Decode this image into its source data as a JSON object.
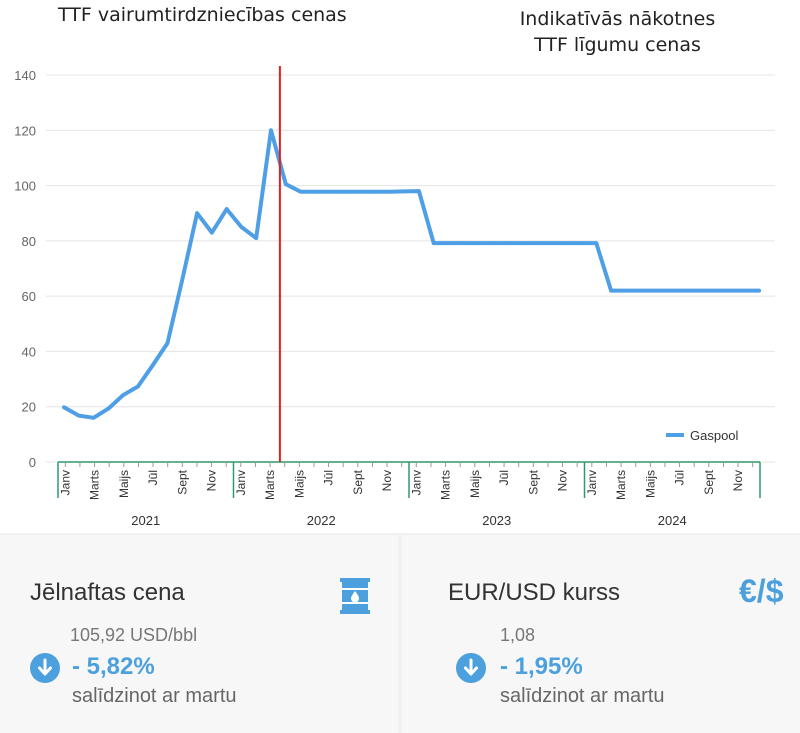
{
  "titles": {
    "left": "TTF vairumtirdzniecības cenas",
    "right_line1": "Indikatīvās nākotnes",
    "right_line2": "TTF līgumu cenas"
  },
  "chart_data": {
    "type": "line",
    "ylim": [
      0,
      140
    ],
    "yticks": [
      0,
      20,
      40,
      60,
      80,
      100,
      120,
      140
    ],
    "grid": true,
    "legend": "bottom-right",
    "series": [
      {
        "name": "Gaspool",
        "color": "#4e9fe5",
        "x": [
          0,
          1,
          2,
          3,
          4,
          5,
          6,
          7,
          8,
          9,
          10,
          11,
          12,
          13,
          14,
          15,
          16,
          17,
          18,
          19,
          20,
          21,
          22,
          23,
          24,
          25,
          26,
          27,
          28,
          29,
          30,
          31,
          32,
          33,
          34,
          35,
          36,
          37,
          38,
          39,
          40,
          41,
          42,
          43,
          44,
          45,
          46,
          47
        ],
        "values": [
          19.8,
          16.8,
          16.0,
          19.3,
          24.2,
          27.3,
          35.0,
          43.0,
          66.0,
          90.0,
          83.0,
          91.5,
          85.0,
          81.0,
          120.0,
          100.5,
          97.8,
          97.8,
          97.8,
          97.8,
          97.8,
          97.8,
          97.8,
          97.9,
          98.0,
          79.2,
          79.2,
          79.2,
          79.2,
          79.2,
          79.2,
          79.2,
          79.2,
          79.2,
          79.2,
          79.2,
          79.2,
          62.0,
          62.0,
          62.0,
          62.0,
          62.0,
          62.0,
          62.0,
          62.0,
          62.0,
          62.0,
          62.0
        ]
      }
    ],
    "divider_after_index": 14.6,
    "month_labels": [
      {
        "index": 0,
        "label": "Janv"
      },
      {
        "index": 2,
        "label": "Marts"
      },
      {
        "index": 4,
        "label": "Maijs"
      },
      {
        "index": 6,
        "label": "Jūl"
      },
      {
        "index": 8,
        "label": "Sept"
      },
      {
        "index": 10,
        "label": "Nov"
      },
      {
        "index": 12,
        "label": "Janv"
      },
      {
        "index": 14,
        "label": "Marts"
      },
      {
        "index": 16,
        "label": "Maijs"
      },
      {
        "index": 18,
        "label": "Jūl"
      },
      {
        "index": 20,
        "label": "Sept"
      },
      {
        "index": 22,
        "label": "Nov"
      },
      {
        "index": 24,
        "label": "Janv"
      },
      {
        "index": 26,
        "label": "Marts"
      },
      {
        "index": 28,
        "label": "Maijs"
      },
      {
        "index": 30,
        "label": "Jūl"
      },
      {
        "index": 32,
        "label": "Sept"
      },
      {
        "index": 34,
        "label": "Nov"
      },
      {
        "index": 36,
        "label": "Janv"
      },
      {
        "index": 38,
        "label": "Marts"
      },
      {
        "index": 40,
        "label": "Maijs"
      },
      {
        "index": 42,
        "label": "Jūl"
      },
      {
        "index": 44,
        "label": "Sept"
      },
      {
        "index": 46,
        "label": "Nov"
      }
    ],
    "years": [
      {
        "label": "2021",
        "start": 0,
        "end": 12
      },
      {
        "label": "2022",
        "start": 12,
        "end": 24
      },
      {
        "label": "2023",
        "start": 24,
        "end": 36
      },
      {
        "label": "2024",
        "start": 36,
        "end": 48
      }
    ]
  },
  "cards": {
    "oil": {
      "title": "Jēlnaftas cena",
      "value": "105,92 USD/bbl",
      "change": "- 5,82%",
      "subtitle": "salīdzinot ar martu",
      "icon": "oil-barrel-icon"
    },
    "fx": {
      "title": "EUR/USD kurss",
      "value": "1,08",
      "change": "- 1,95%",
      "subtitle": "salīdzinot ar martu",
      "icon_text": "€/$"
    }
  },
  "colors": {
    "line": "#4e9fe5",
    "divider": "#e02020",
    "axis_green": "#2e9a6a",
    "accent": "#4ba0dd"
  }
}
